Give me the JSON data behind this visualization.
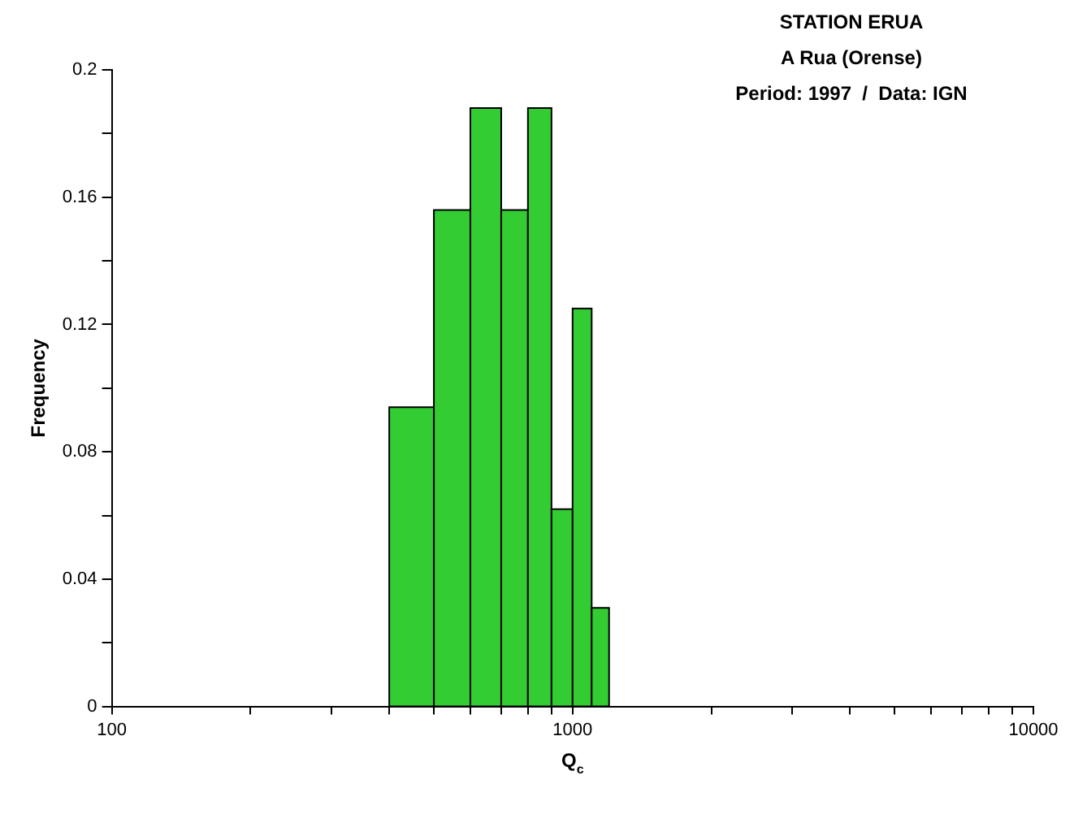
{
  "chart_data": {
    "type": "histogram",
    "title": "STATION ERUA",
    "subtitle": "A Rua (Orense)",
    "annotations": [
      "Period: 1997  /  Data: IGN"
    ],
    "xlabel": "Q$_{c}$",
    "ylabel": "Frequency",
    "bins": [
      400,
      500,
      600,
      700,
      800,
      900,
      1000,
      1100,
      1200
    ],
    "values": [
      0.094,
      0.156,
      0.188,
      0.156,
      0.188,
      0.062,
      0.125,
      0.031
    ],
    "color": "#33cc33",
    "log": "x",
    "xlim": [
      100,
      10000
    ],
    "xticks": [
      100,
      {
        "value": 200,
        "label": null
      },
      {
        "value": 300,
        "label": null
      },
      {
        "value": 400,
        "label": null
      },
      {
        "value": 500,
        "label": null
      },
      {
        "value": 600,
        "label": null
      },
      {
        "value": 700,
        "label": null
      },
      {
        "value": 800,
        "label": null
      },
      {
        "value": 900,
        "label": null
      },
      1000,
      {
        "value": 2000,
        "label": null
      },
      {
        "value": 3000,
        "label": null
      },
      {
        "value": 4000,
        "label": null
      },
      {
        "value": 5000,
        "label": null
      },
      {
        "value": 6000,
        "label": null
      },
      {
        "value": 7000,
        "label": null
      },
      {
        "value": 8000,
        "label": null
      },
      {
        "value": 9000,
        "label": null
      },
      10000
    ],
    "ylim": [
      0,
      0.2
    ],
    "yticks": [
      0,
      {
        "value": 0.02,
        "label": null
      },
      0.04,
      {
        "value": 0.06,
        "label": null
      },
      0.08,
      {
        "value": 0.1,
        "label": null
      },
      0.12,
      {
        "value": 0.14,
        "label": null
      },
      0.16,
      {
        "value": 0.18,
        "label": null
      },
      0.2
    ],
    "grid": false
  }
}
